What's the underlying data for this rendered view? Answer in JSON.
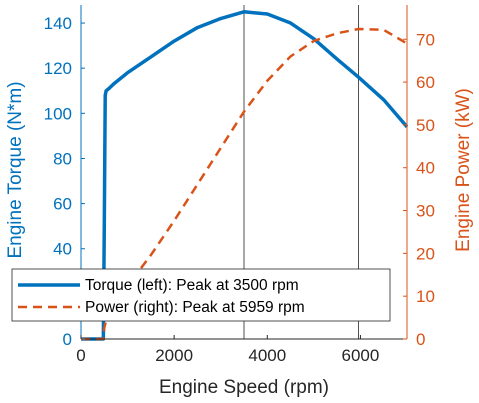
{
  "chart_data": {
    "type": "line",
    "title": "",
    "xlabel": "Engine Speed (rpm)",
    "ylabel_left": "Engine Torque (N*m)",
    "ylabel_right": "Engine Power (kW)",
    "xlim": [
      0,
      7000
    ],
    "ylim_left": [
      0,
      148
    ],
    "ylim_right": [
      0,
      78
    ],
    "x_ticks": [
      0,
      2000,
      4000,
      6000
    ],
    "x_tick_labels": [
      "0",
      "2000",
      "4000",
      "6000"
    ],
    "y_left_ticks": [
      0,
      20,
      40,
      60,
      80,
      100,
      120,
      140
    ],
    "y_left_tick_labels": [
      "0",
      "20",
      "40",
      "60",
      "80",
      "100",
      "120",
      "140"
    ],
    "y_right_ticks": [
      0,
      10,
      20,
      30,
      40,
      50,
      60,
      70
    ],
    "y_right_tick_labels": [
      "0",
      "10",
      "20",
      "30",
      "40",
      "50",
      "60",
      "70"
    ],
    "vertical_lines": [
      3500,
      5959
    ],
    "legend_position": "bottom-left",
    "colors": {
      "torque": "#0072BD",
      "power": "#D95319",
      "axes": "#262626"
    },
    "series": [
      {
        "name": "Torque (left): Peak at 3500 rpm",
        "axis": "left",
        "style": "solid",
        "x": [
          0,
          400,
          480,
          500,
          520,
          540,
          600,
          700,
          1000,
          1500,
          2000,
          2500,
          3000,
          3500,
          4000,
          4500,
          5000,
          5500,
          5959,
          6500,
          7000
        ],
        "values": [
          0,
          0,
          0,
          50,
          108,
          110,
          111,
          113,
          118,
          125,
          132,
          138,
          142,
          145,
          144,
          140,
          133,
          124,
          116,
          106,
          94
        ]
      },
      {
        "name": "Power (right): Peak at 5959 rpm",
        "axis": "right",
        "style": "dashed",
        "x": [
          0,
          400,
          480,
          500,
          600,
          800,
          1000,
          1500,
          2000,
          2500,
          3000,
          3500,
          4000,
          4500,
          5000,
          5500,
          5959,
          6500,
          7000
        ],
        "values": [
          0,
          0,
          0,
          2.6,
          7,
          9.5,
          12.4,
          19.6,
          27.6,
          36.1,
          44.6,
          53.1,
          60.3,
          66,
          69.6,
          71.4,
          72.4,
          72.2,
          69
        ]
      }
    ]
  }
}
